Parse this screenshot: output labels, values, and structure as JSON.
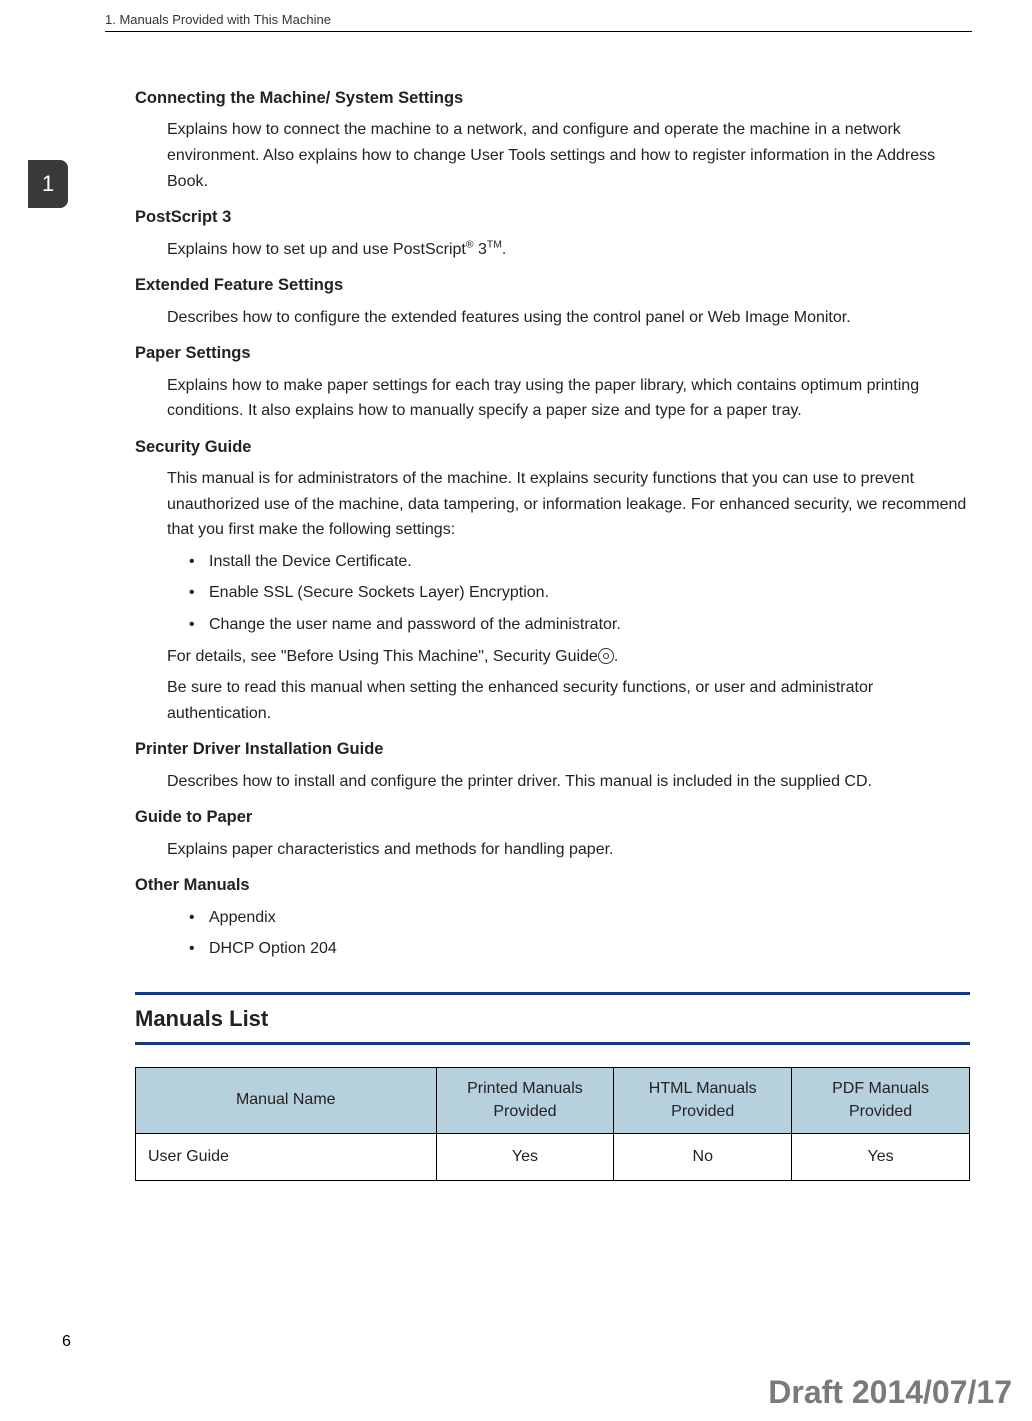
{
  "header": {
    "text": "1. Manuals Provided with This Machine"
  },
  "chapter_tab": "1",
  "sections": {
    "connecting": {
      "title": "Connecting the Machine/ System Settings",
      "body": "Explains how to connect the machine to a network, and configure and operate the machine in a network environment. Also explains how to change User Tools settings and how to register information in the Address Book."
    },
    "postscript": {
      "title": "PostScript 3",
      "body_pre": "Explains how to set up and use PostScript",
      "reg": "®",
      "three": " 3",
      "tm": "TM",
      "body_post": "."
    },
    "extended": {
      "title": "Extended Feature Settings",
      "body": "Describes how to configure the extended features using the control panel or Web Image Monitor."
    },
    "paper_settings": {
      "title": "Paper Settings",
      "body": "Explains how to make paper settings for each tray using the paper library, which contains optimum printing conditions. It also explains how to manually specify a paper size and type for a paper tray."
    },
    "security": {
      "title": "Security Guide",
      "intro": "This manual is for administrators of the machine. It explains security functions that you can use to prevent unauthorized use of the machine, data tampering, or information leakage. For enhanced security, we recommend that you first make the following settings:",
      "bullets": [
        "Install the Device Certificate.",
        "Enable SSL (Secure Sockets Layer) Encryption.",
        "Change the user name and password of the administrator."
      ],
      "details_pre": "For details, see \"Before Using This Machine\", Security Guide",
      "details_post": ".",
      "note": "Be sure to read this manual when setting the enhanced security functions, or user and administrator authentication."
    },
    "driver": {
      "title": "Printer Driver Installation Guide",
      "body": "Describes how to install and configure the printer driver. This manual is included in the supplied CD."
    },
    "guide_paper": {
      "title": "Guide to Paper",
      "body": "Explains paper characteristics and methods for handling paper."
    },
    "other": {
      "title": "Other Manuals",
      "bullets": [
        "Appendix",
        "DHCP Option 204"
      ]
    }
  },
  "manuals_list": {
    "heading": "Manuals List",
    "columns": [
      "Manual Name",
      "Printed Manuals Provided",
      "HTML Manuals Provided",
      "PDF Manuals Provided"
    ],
    "rows": [
      [
        "User Guide",
        "Yes",
        "No",
        "Yes"
      ]
    ]
  },
  "page_number": "6",
  "draft_stamp": "Draft 2014/07/17",
  "colors": {
    "rule_blue": "#0a3d91",
    "table_header_bg": "#b6d0de",
    "tab_bg": "#3a3a3a",
    "draft_color": "#7a7a7a"
  }
}
